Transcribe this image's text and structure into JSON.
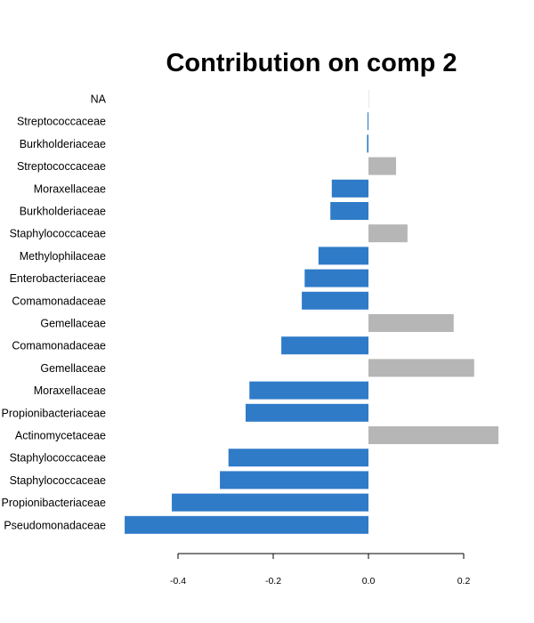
{
  "chart_data": {
    "type": "bar",
    "orientation": "horizontal",
    "title": "Contribution on comp 2",
    "xlabel": "",
    "ylabel": "",
    "xlim": [
      -0.52,
      0.3
    ],
    "xticks": [
      -0.4,
      -0.2,
      0.0,
      0.2
    ],
    "xtick_labels": [
      "-0.4",
      "-0.2",
      "0.0",
      "0.2"
    ],
    "grid": false,
    "colors": {
      "negative": "#2f7bc8",
      "positive": "#b6b6b6"
    },
    "categories": [
      "NA",
      "Streptococcaceae",
      "Burkholderiaceae",
      "Streptococcaceae",
      "Moraxellaceae",
      "Burkholderiaceae",
      "Staphylococcaceae",
      "Methylophilaceae",
      "Enterobacteriaceae",
      "Comamonadaceae",
      "Gemellaceae",
      "Comamonadaceae",
      "Gemellaceae",
      "Moraxellaceae",
      "Propionibacteriaceae",
      "Actinomycetaceae",
      "Staphylococcaceae",
      "Staphylococcaceae",
      "Propionibacteriaceae",
      "Pseudomonadaceae"
    ],
    "values": [
      0.0,
      -0.002,
      -0.003,
      0.058,
      -0.077,
      -0.08,
      0.082,
      -0.105,
      -0.134,
      -0.14,
      0.179,
      -0.183,
      0.222,
      -0.25,
      -0.258,
      0.273,
      -0.294,
      -0.312,
      -0.413,
      -0.512
    ]
  }
}
